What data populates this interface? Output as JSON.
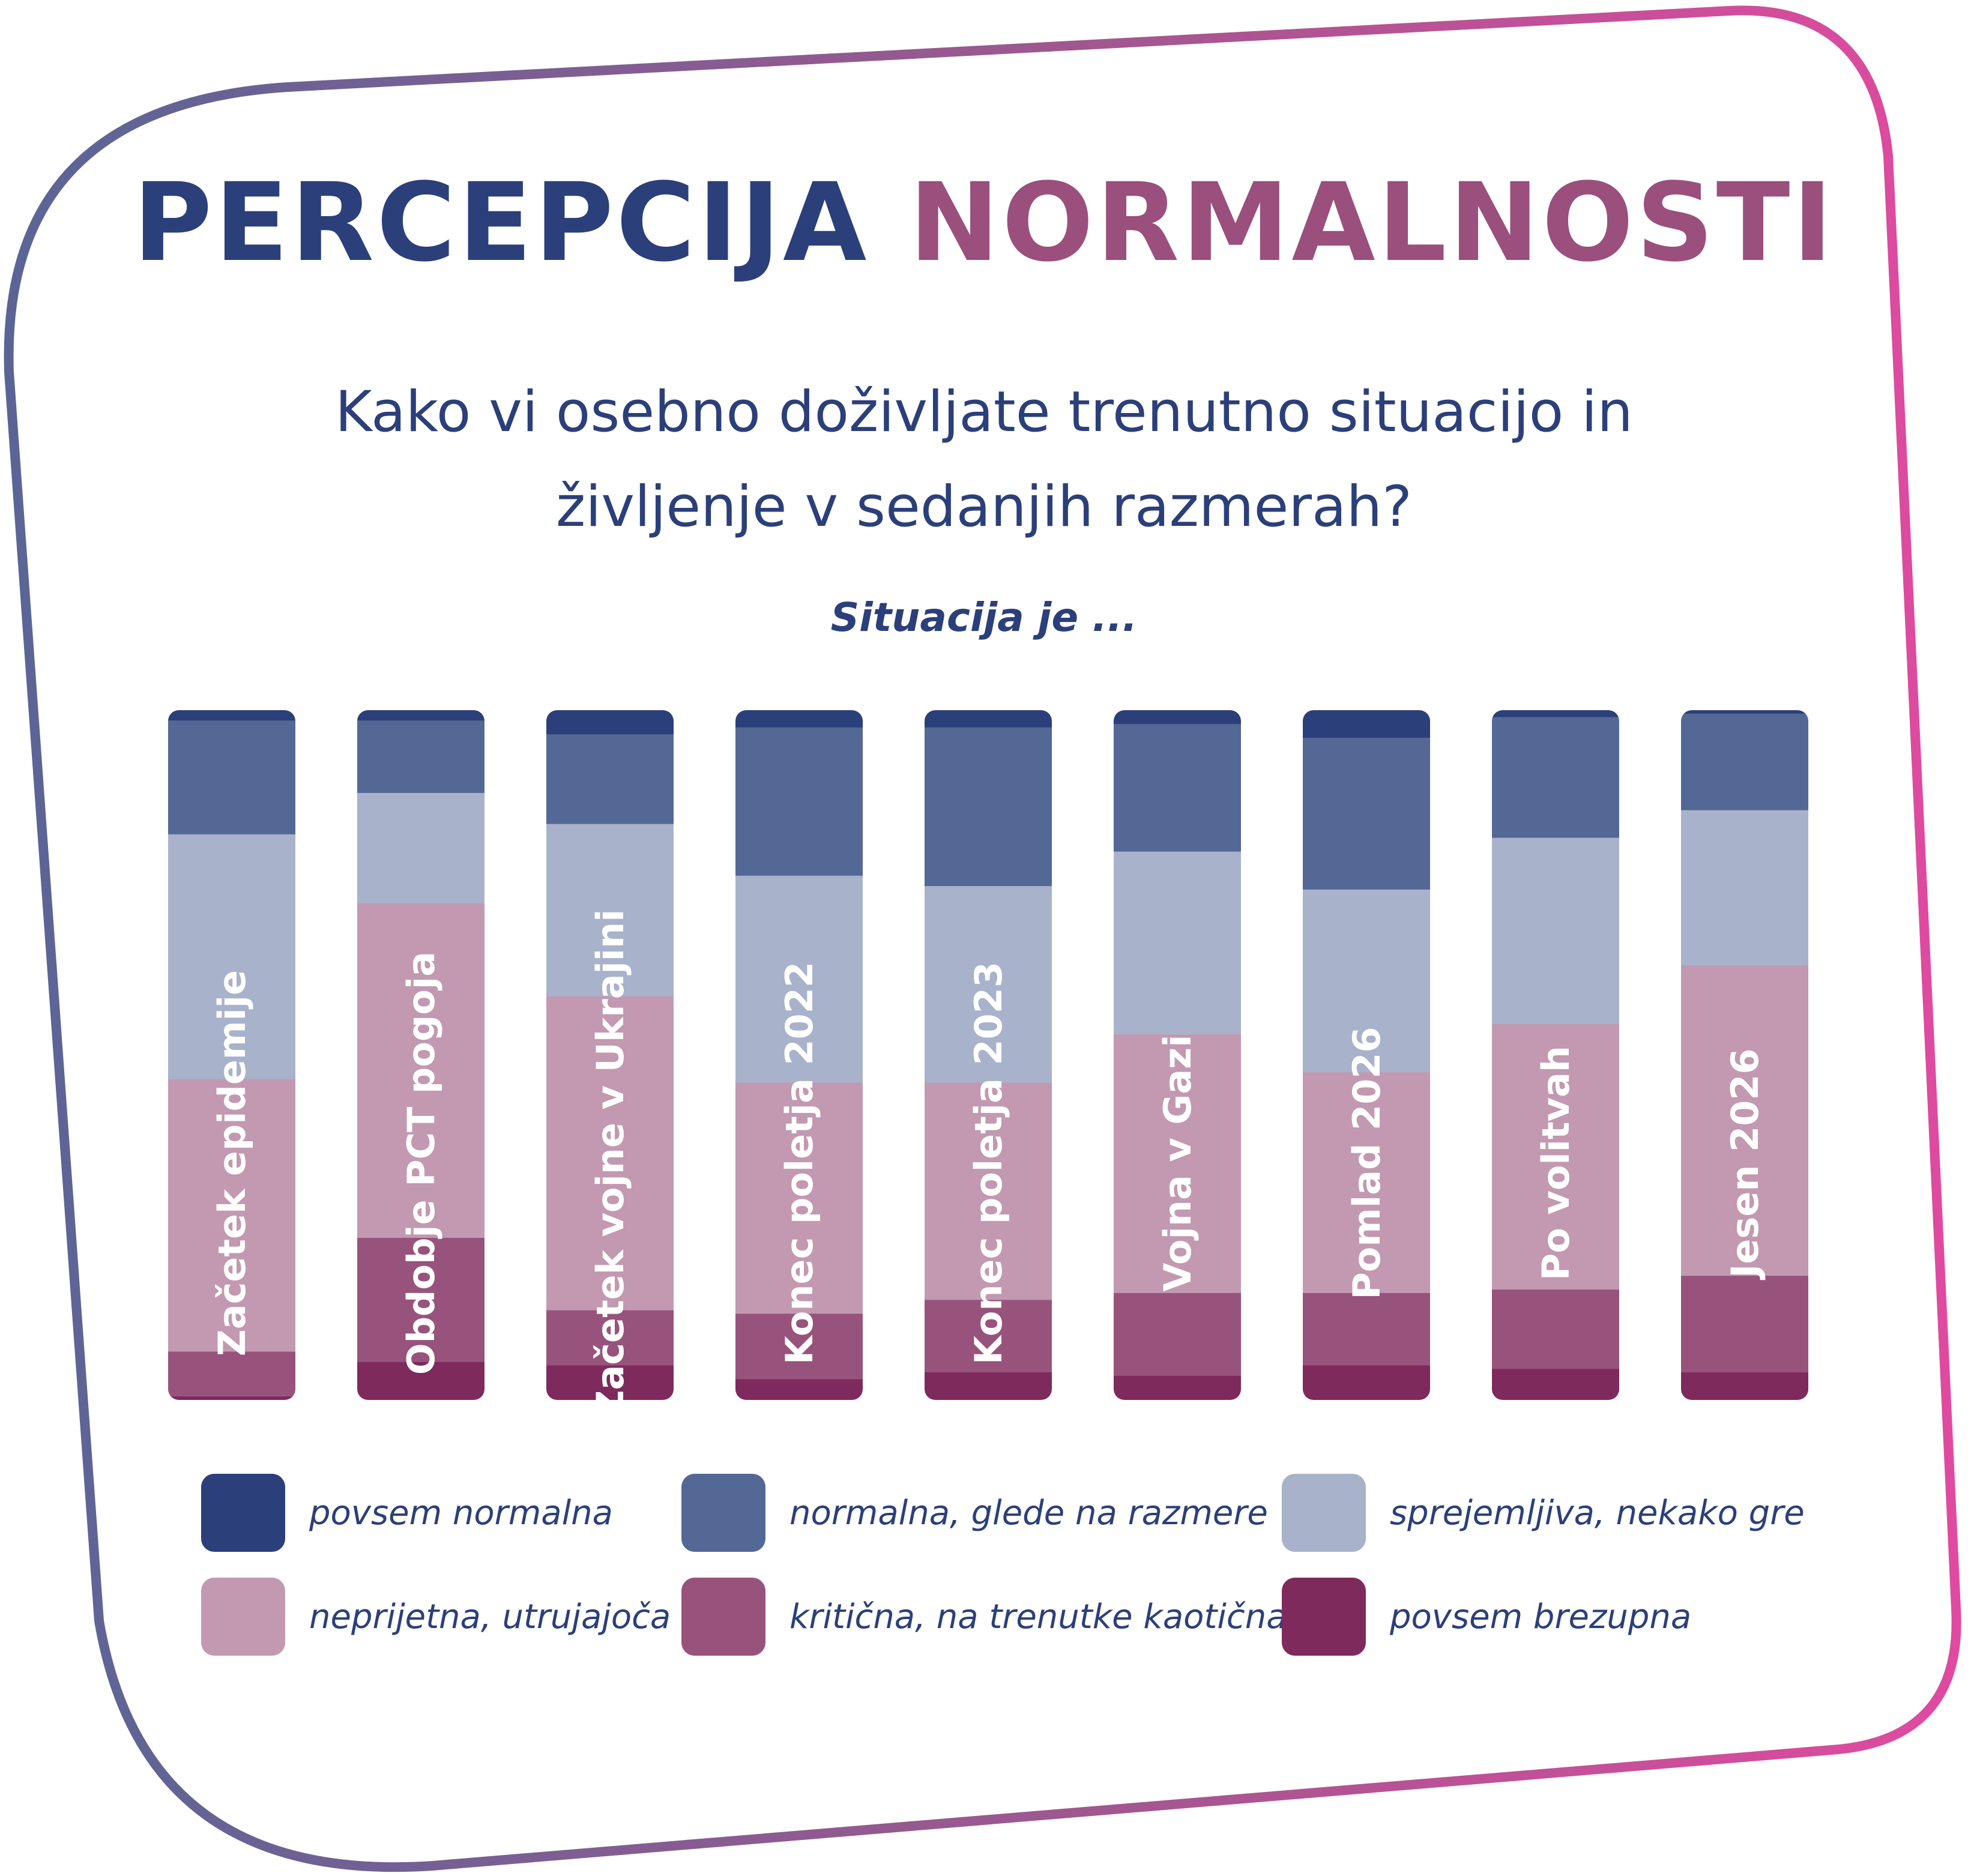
{
  "header": {
    "title_part1": "PERCEPCIJA",
    "title_part2": "NORMALNOSTI",
    "subtitle_line1": "Kako vi osebno doživljate trenutno situacijo in",
    "subtitle_line2": "življenje v sedanjih razmerah?",
    "caption": "Situacija je ..."
  },
  "colors": {
    "title_primary": "#2b3f7a",
    "title_accent": "#9a4f7d",
    "frame_gradient_start": "#5a6596",
    "frame_gradient_end": "#e04aa0"
  },
  "chart_data": {
    "type": "bar",
    "stacked": true,
    "orientation": "vertical",
    "normalized_to": 100,
    "categories": [
      "Začetek epidemije",
      "Obdobje PCT pogoja",
      "Začetek vojne v Ukrajini",
      "Konec poletja 2022",
      "Konec poletja 2023",
      "Vojna v Gazi",
      "Pomlad 2026",
      "Po volitvah",
      "Jesen 2026"
    ],
    "series": [
      {
        "name": "povsem normalna",
        "color": "#2b3f7a",
        "values": [
          1.5,
          1.5,
          3.5,
          2.5,
          2.5,
          2,
          4,
          1,
          0.5
        ]
      },
      {
        "name": "normalna, glede na razmere",
        "color": "#536895",
        "values": [
          16.5,
          10.5,
          13,
          21.5,
          23,
          18.5,
          22,
          17.5,
          14
        ]
      },
      {
        "name": "sprejemljiva, nekako gre",
        "color": "#a8b2cb",
        "values": [
          35.5,
          16,
          25,
          30,
          28.5,
          26.5,
          26.5,
          27,
          22.5
        ]
      },
      {
        "name": "neprijetna, utrujajoča",
        "color": "#c299b1",
        "values": [
          39.5,
          48.5,
          45.5,
          33.5,
          31.5,
          37.5,
          32,
          38.5,
          45
        ]
      },
      {
        "name": "kritična, na trenutke kaotična",
        "color": "#98537c",
        "values": [
          6.5,
          18,
          8,
          9.5,
          10.5,
          12,
          10.5,
          11.5,
          14
        ]
      },
      {
        "name": "povsem brezupna",
        "color": "#7e2a5d",
        "values": [
          0.5,
          5.5,
          5,
          3,
          4,
          3.5,
          5,
          4.5,
          4
        ]
      }
    ],
    "ylim": [
      0,
      100
    ],
    "legend_position": "bottom",
    "grid": false
  }
}
